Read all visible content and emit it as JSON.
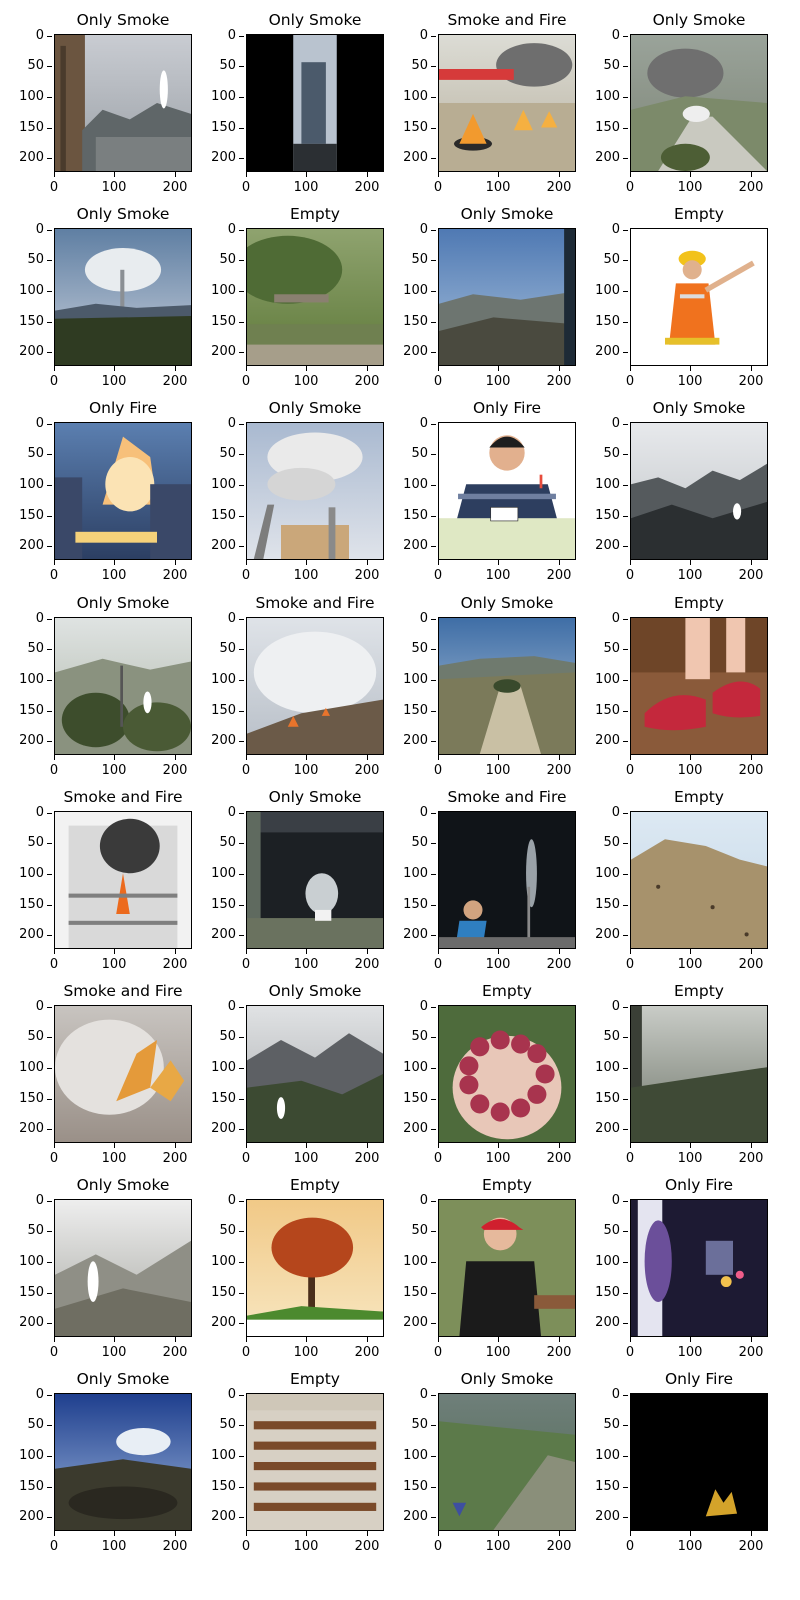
{
  "figure": {
    "y_ticks": [
      "0",
      "50",
      "100",
      "150",
      "200"
    ],
    "x_ticks": [
      "0",
      "100",
      "200"
    ],
    "panels": [
      {
        "title": "Only Smoke",
        "scene": "city-smoke"
      },
      {
        "title": "Only Smoke",
        "scene": "building-letterbox"
      },
      {
        "title": "Smoke and Fire",
        "scene": "fire-pots"
      },
      {
        "title": "Only Smoke",
        "scene": "road-smoke"
      },
      {
        "title": "Only Smoke",
        "scene": "fisheye-smoke"
      },
      {
        "title": "Empty",
        "scene": "blurry-green"
      },
      {
        "title": "Only Smoke",
        "scene": "valley-sky"
      },
      {
        "title": "Empty",
        "scene": "worker"
      },
      {
        "title": "Only Fire",
        "scene": "house-fire"
      },
      {
        "title": "Only Smoke",
        "scene": "factory-smoke"
      },
      {
        "title": "Only Fire",
        "scene": "person-lighter"
      },
      {
        "title": "Only Smoke",
        "scene": "mountain-smoke"
      },
      {
        "title": "Only Smoke",
        "scene": "forest-smoke"
      },
      {
        "title": "Smoke and Fire",
        "scene": "hill-fire"
      },
      {
        "title": "Only Smoke",
        "scene": "hilltop"
      },
      {
        "title": "Empty",
        "scene": "red-shoes"
      },
      {
        "title": "Smoke and Fire",
        "scene": "building-fire"
      },
      {
        "title": "Only Smoke",
        "scene": "lab-smoke"
      },
      {
        "title": "Smoke and Fire",
        "scene": "person-smoke"
      },
      {
        "title": "Empty",
        "scene": "dry-hill"
      },
      {
        "title": "Smoke and Fire",
        "scene": "smoke-fire-field"
      },
      {
        "title": "Only Smoke",
        "scene": "valley-smoke"
      },
      {
        "title": "Empty",
        "scene": "beads"
      },
      {
        "title": "Empty",
        "scene": "dark-blur"
      },
      {
        "title": "Only Smoke",
        "scene": "foggy-smoke"
      },
      {
        "title": "Empty",
        "scene": "tree-sunset"
      },
      {
        "title": "Empty",
        "scene": "person-cap"
      },
      {
        "title": "Only Fire",
        "scene": "night-blur"
      },
      {
        "title": "Only Smoke",
        "scene": "fisheye-landscape"
      },
      {
        "title": "Empty",
        "scene": "auditorium"
      },
      {
        "title": "Only Smoke",
        "scene": "green-slope"
      },
      {
        "title": "Only Fire",
        "scene": "black-small-fire"
      }
    ]
  }
}
